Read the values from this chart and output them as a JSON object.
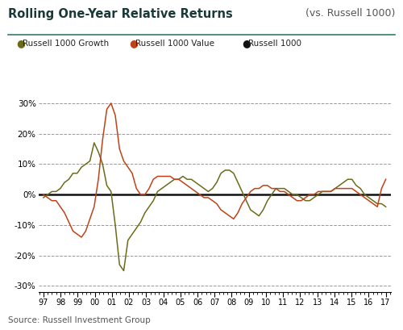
{
  "title_left": "Rolling One-Year Relative Returns",
  "title_right": "(vs. Russell 1000)",
  "source": "Source: Russell Investment Group",
  "legend": [
    "Russell 1000 Growth",
    "Russell 1000 Value",
    "Russell 1000"
  ],
  "colors": {
    "growth": "#6b6b1a",
    "value": "#bf4318",
    "russell": "#111111"
  },
  "title_color": "#1a3a3a",
  "separator_color": "#3a7a6a",
  "x_labels": [
    "97",
    "98",
    "99",
    "00",
    "01",
    "02",
    "03",
    "04",
    "05",
    "06",
    "07",
    "08",
    "09",
    "10",
    "11",
    "12",
    "13",
    "14",
    "15",
    "16",
    "17"
  ],
  "yticks": [
    -30,
    -20,
    -10,
    0,
    10,
    20,
    30
  ],
  "ylim": [
    -32,
    33
  ],
  "growth_y": [
    -1,
    0,
    1,
    1,
    2,
    4,
    5,
    7,
    7,
    9,
    10,
    11,
    17,
    14,
    10,
    3,
    1,
    -10,
    -23,
    -25,
    -15,
    -13,
    -11,
    -9,
    -6,
    -4,
    -2,
    1,
    2,
    3,
    4,
    5,
    5,
    6,
    5,
    5,
    4,
    3,
    2,
    1,
    2,
    4,
    7,
    8,
    8,
    7,
    4,
    1,
    -2,
    -5,
    -6,
    -7,
    -5,
    -2,
    0,
    2,
    2,
    2,
    1,
    0,
    0,
    -1,
    -2,
    -2,
    -1,
    0,
    1,
    1,
    1,
    2,
    3,
    4,
    5,
    5,
    3,
    2,
    0,
    -1,
    -2,
    -3,
    -3,
    -4
  ],
  "value_y": [
    0,
    -1,
    -2,
    -2,
    -4,
    -6,
    -9,
    -12,
    -13,
    -14,
    -12,
    -8,
    -4,
    5,
    18,
    28,
    30,
    26,
    15,
    11,
    9,
    7,
    2,
    0,
    0,
    2,
    5,
    6,
    6,
    6,
    6,
    5,
    5,
    4,
    3,
    2,
    1,
    0,
    -1,
    -1,
    -2,
    -3,
    -5,
    -6,
    -7,
    -8,
    -6,
    -3,
    -1,
    1,
    2,
    2,
    3,
    3,
    2,
    2,
    1,
    1,
    0,
    -1,
    -2,
    -2,
    -1,
    0,
    0,
    1,
    1,
    1,
    1,
    2,
    2,
    2,
    2,
    2,
    1,
    0,
    -1,
    -2,
    -3,
    -4,
    2,
    5
  ]
}
